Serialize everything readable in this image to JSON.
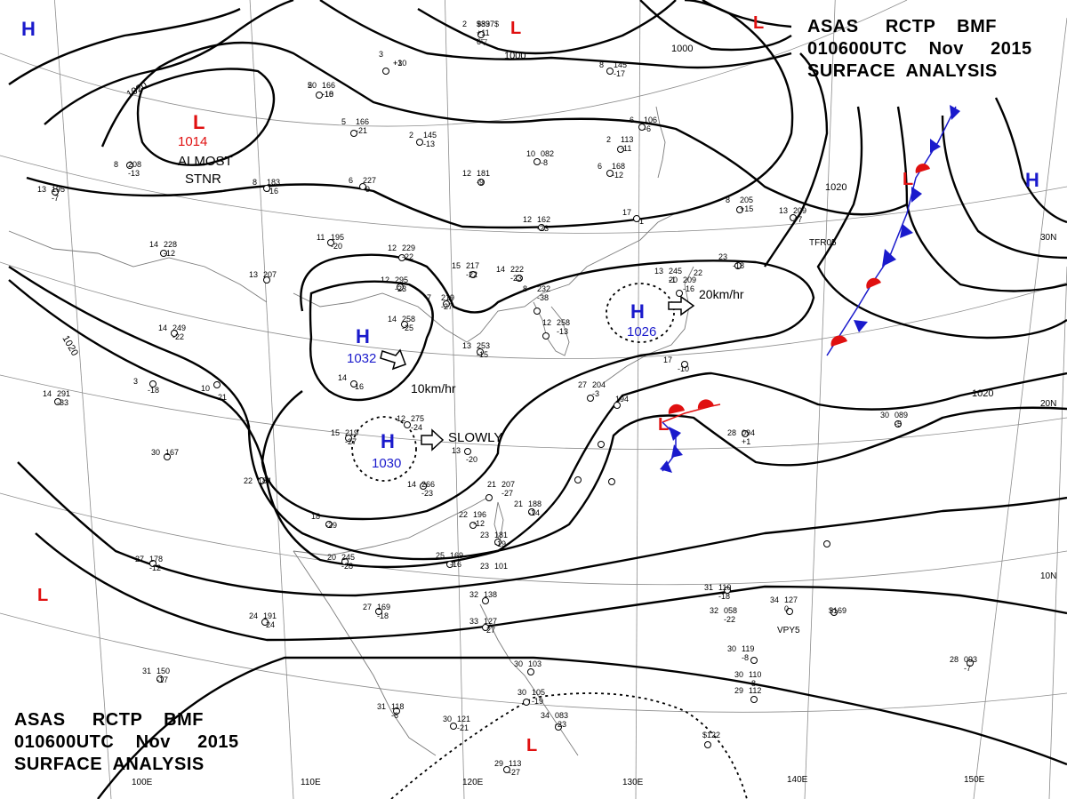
{
  "header": {
    "line1": "ASAS     RCTP    BMF",
    "line2": "010600UTC    Nov     2015",
    "line3": "SURFACE  ANALYSIS"
  },
  "footer": {
    "line1": "ASAS     RCTP    BMF",
    "line2": "010600UTC    Nov     2015",
    "line3": "SURFACE  ANALYSIS"
  },
  "colors": {
    "high": "#1a1acc",
    "low": "#e01010",
    "isobar": "#000000",
    "grid": "#8c8c8c",
    "coast": "#7a7a7a",
    "warm_front": "#e01010",
    "cold_front": "#1a1acc"
  },
  "isobar_labels": [
    "1000",
    "1000",
    "1020",
    "1020",
    "1020",
    "1020"
  ],
  "systems": [
    {
      "type": "H",
      "symbol": "H",
      "pressure": "1032",
      "motion": "10km/hr"
    },
    {
      "type": "H",
      "symbol": "H",
      "pressure": "1030",
      "motion": "SLOWLY"
    },
    {
      "type": "H",
      "symbol": "H",
      "pressure": "1026",
      "motion": "20km/hr"
    },
    {
      "type": "L",
      "symbol": "L",
      "pressure": "1014",
      "note1": "ALMOST",
      "note2": "STNR"
    },
    {
      "type": "H",
      "symbol": "H"
    },
    {
      "type": "H",
      "symbol": "H"
    },
    {
      "type": "L",
      "symbol": "L"
    },
    {
      "type": "L",
      "symbol": "L"
    },
    {
      "type": "L",
      "symbol": "L"
    },
    {
      "type": "L",
      "symbol": "L"
    },
    {
      "type": "L",
      "symbol": "L"
    }
  ],
  "longitude_labels": [
    "100E",
    "110E",
    "120E",
    "130E",
    "140E",
    "150E"
  ],
  "latitude_labels": [
    "30N",
    "20N",
    "10N"
  ],
  "station_plots": [
    {
      "t": "2",
      "p": "983",
      "d": "+11",
      "w": "6▽"
    },
    {
      "t": "3",
      "p": "",
      "d": "+10"
    },
    {
      "t": "5",
      "p": "166",
      "d": "-18"
    },
    {
      "t": "5",
      "p": "166",
      "d": "-21"
    },
    {
      "t": "8",
      "p": "208",
      "d": "-13"
    },
    {
      "t": "13",
      "p": "195",
      "d": "-7"
    },
    {
      "t": "8",
      "p": "183",
      "d": "-16"
    },
    {
      "t": "6",
      "p": "227",
      "d": "-9"
    },
    {
      "t": "2",
      "p": "145",
      "d": "-13"
    },
    {
      "t": "10",
      "p": "082",
      "d": "-8"
    },
    {
      "t": "2",
      "p": "113",
      "d": "-11"
    },
    {
      "t": "6",
      "p": "106",
      "d": "-6"
    },
    {
      "t": "8",
      "p": "145",
      "d": "-17"
    },
    {
      "t": "6",
      "p": "168",
      "d": "-12"
    },
    {
      "t": "12",
      "p": "181",
      "d": "-9"
    },
    {
      "t": "17",
      "p": "",
      "d": "-1"
    },
    {
      "t": "8",
      "p": "205",
      "d": "+15"
    },
    {
      "t": "13",
      "p": "209",
      "d": "+7"
    },
    {
      "t": "11",
      "p": "195",
      "d": "-20"
    },
    {
      "t": "12",
      "p": "229",
      "d": "-22"
    },
    {
      "t": "12",
      "p": "162",
      "d": "-23"
    },
    {
      "t": "15",
      "p": "217",
      "d": "-22"
    },
    {
      "t": "14",
      "p": "222",
      "d": "-23"
    },
    {
      "t": "13",
      "p": "207",
      "d": ""
    },
    {
      "t": "14",
      "p": "228",
      "d": "-12"
    },
    {
      "t": "12",
      "p": "295",
      "d": "-23"
    },
    {
      "t": "7",
      "p": "219",
      "d": "-27"
    },
    {
      "t": "14",
      "p": "258",
      "d": "-25"
    },
    {
      "t": "8",
      "p": "232",
      "d": "-38"
    },
    {
      "t": "12",
      "p": "258",
      "d": "-13"
    },
    {
      "t": "13",
      "p": "253",
      "d": "-15"
    },
    {
      "t": "14",
      "p": "249",
      "d": "-22"
    },
    {
      "t": "3",
      "p": "",
      "d": "-18"
    },
    {
      "t": "10",
      "p": "",
      "d": "-21"
    },
    {
      "t": "14",
      "p": "",
      "d": "-16"
    },
    {
      "t": "14",
      "p": "291",
      "d": "-33"
    },
    {
      "t": "30",
      "p": "167",
      "d": ""
    },
    {
      "t": "22",
      "p": "184",
      "d": ""
    },
    {
      "t": "15",
      "p": "219",
      "d": "-27"
    },
    {
      "t": "12",
      "p": "275",
      "d": "-24"
    },
    {
      "t": "13",
      "p": "",
      "d": "-20"
    },
    {
      "t": "14",
      "p": "266",
      "d": "-23"
    },
    {
      "t": "18",
      "p": "",
      "d": "-29"
    },
    {
      "t": "20",
      "p": "245",
      "d": "-28"
    },
    {
      "t": "21",
      "p": "207",
      "d": "-27"
    },
    {
      "t": "21",
      "p": "188",
      "d": "-14"
    },
    {
      "t": "22",
      "p": "196",
      "d": "-12"
    },
    {
      "t": "23",
      "p": "181",
      "d": "-19"
    },
    {
      "t": "23",
      "p": "101",
      "d": ""
    },
    {
      "t": "25",
      "p": "169",
      "d": "-16"
    },
    {
      "t": "27",
      "p": "178",
      "d": "-12"
    },
    {
      "t": "27",
      "p": "169",
      "d": "-18"
    },
    {
      "t": "24",
      "p": "191",
      "d": "-24"
    },
    {
      "t": "31",
      "p": "150",
      "d": "-17"
    },
    {
      "t": "32",
      "p": "138",
      "d": ""
    },
    {
      "t": "33",
      "p": "127",
      "d": "-27"
    },
    {
      "t": "31",
      "p": "118",
      "d": "-6"
    },
    {
      "t": "30",
      "p": "121",
      "d": "-21"
    },
    {
      "t": "29",
      "p": "113",
      "d": "-27"
    },
    {
      "t": "30",
      "p": "105",
      "d": "-19"
    },
    {
      "t": "34",
      "p": "083",
      "d": "-23"
    },
    {
      "t": "30",
      "p": "103",
      "d": ""
    },
    {
      "t": "31",
      "p": "110",
      "d": "-18"
    },
    {
      "t": "32",
      "p": "058",
      "d": "-22"
    },
    {
      "t": "34",
      "p": "127",
      "d": "0"
    },
    {
      "t": "",
      "p": "$169",
      "d": ""
    },
    {
      "t": "30",
      "p": "119",
      "d": "-8"
    },
    {
      "t": "30",
      "p": "110",
      "d": "-8"
    },
    {
      "t": "29",
      "p": "112",
      "d": ""
    },
    {
      "t": "",
      "p": "$122",
      "d": ""
    },
    {
      "t": "28",
      "p": "093",
      "d": "-7"
    },
    {
      "t": "28",
      "p": "094",
      "d": "+1"
    },
    {
      "t": "30",
      "p": "089",
      "d": "-5"
    },
    {
      "t": "27",
      "p": "204",
      "d": "-3"
    },
    {
      "t": "",
      "p": "194",
      "d": ""
    },
    {
      "t": "17",
      "p": "",
      "d": "-10"
    },
    {
      "t": "20",
      "p": "209",
      "d": "-16"
    },
    {
      "t": "23",
      "p": "",
      "d": "-18"
    },
    {
      "t": "22",
      "p": "",
      "d": ""
    },
    {
      "t": "13",
      "p": "245",
      "d": "-1"
    },
    {
      "t": "",
      "p": "$397$",
      "d": ""
    },
    {
      "t": "",
      "p": "",
      "d": "+3"
    },
    {
      "t": "20",
      "p": "",
      "d": "-10"
    }
  ],
  "ship_labels": [
    "TFR05",
    "VPY5"
  ]
}
